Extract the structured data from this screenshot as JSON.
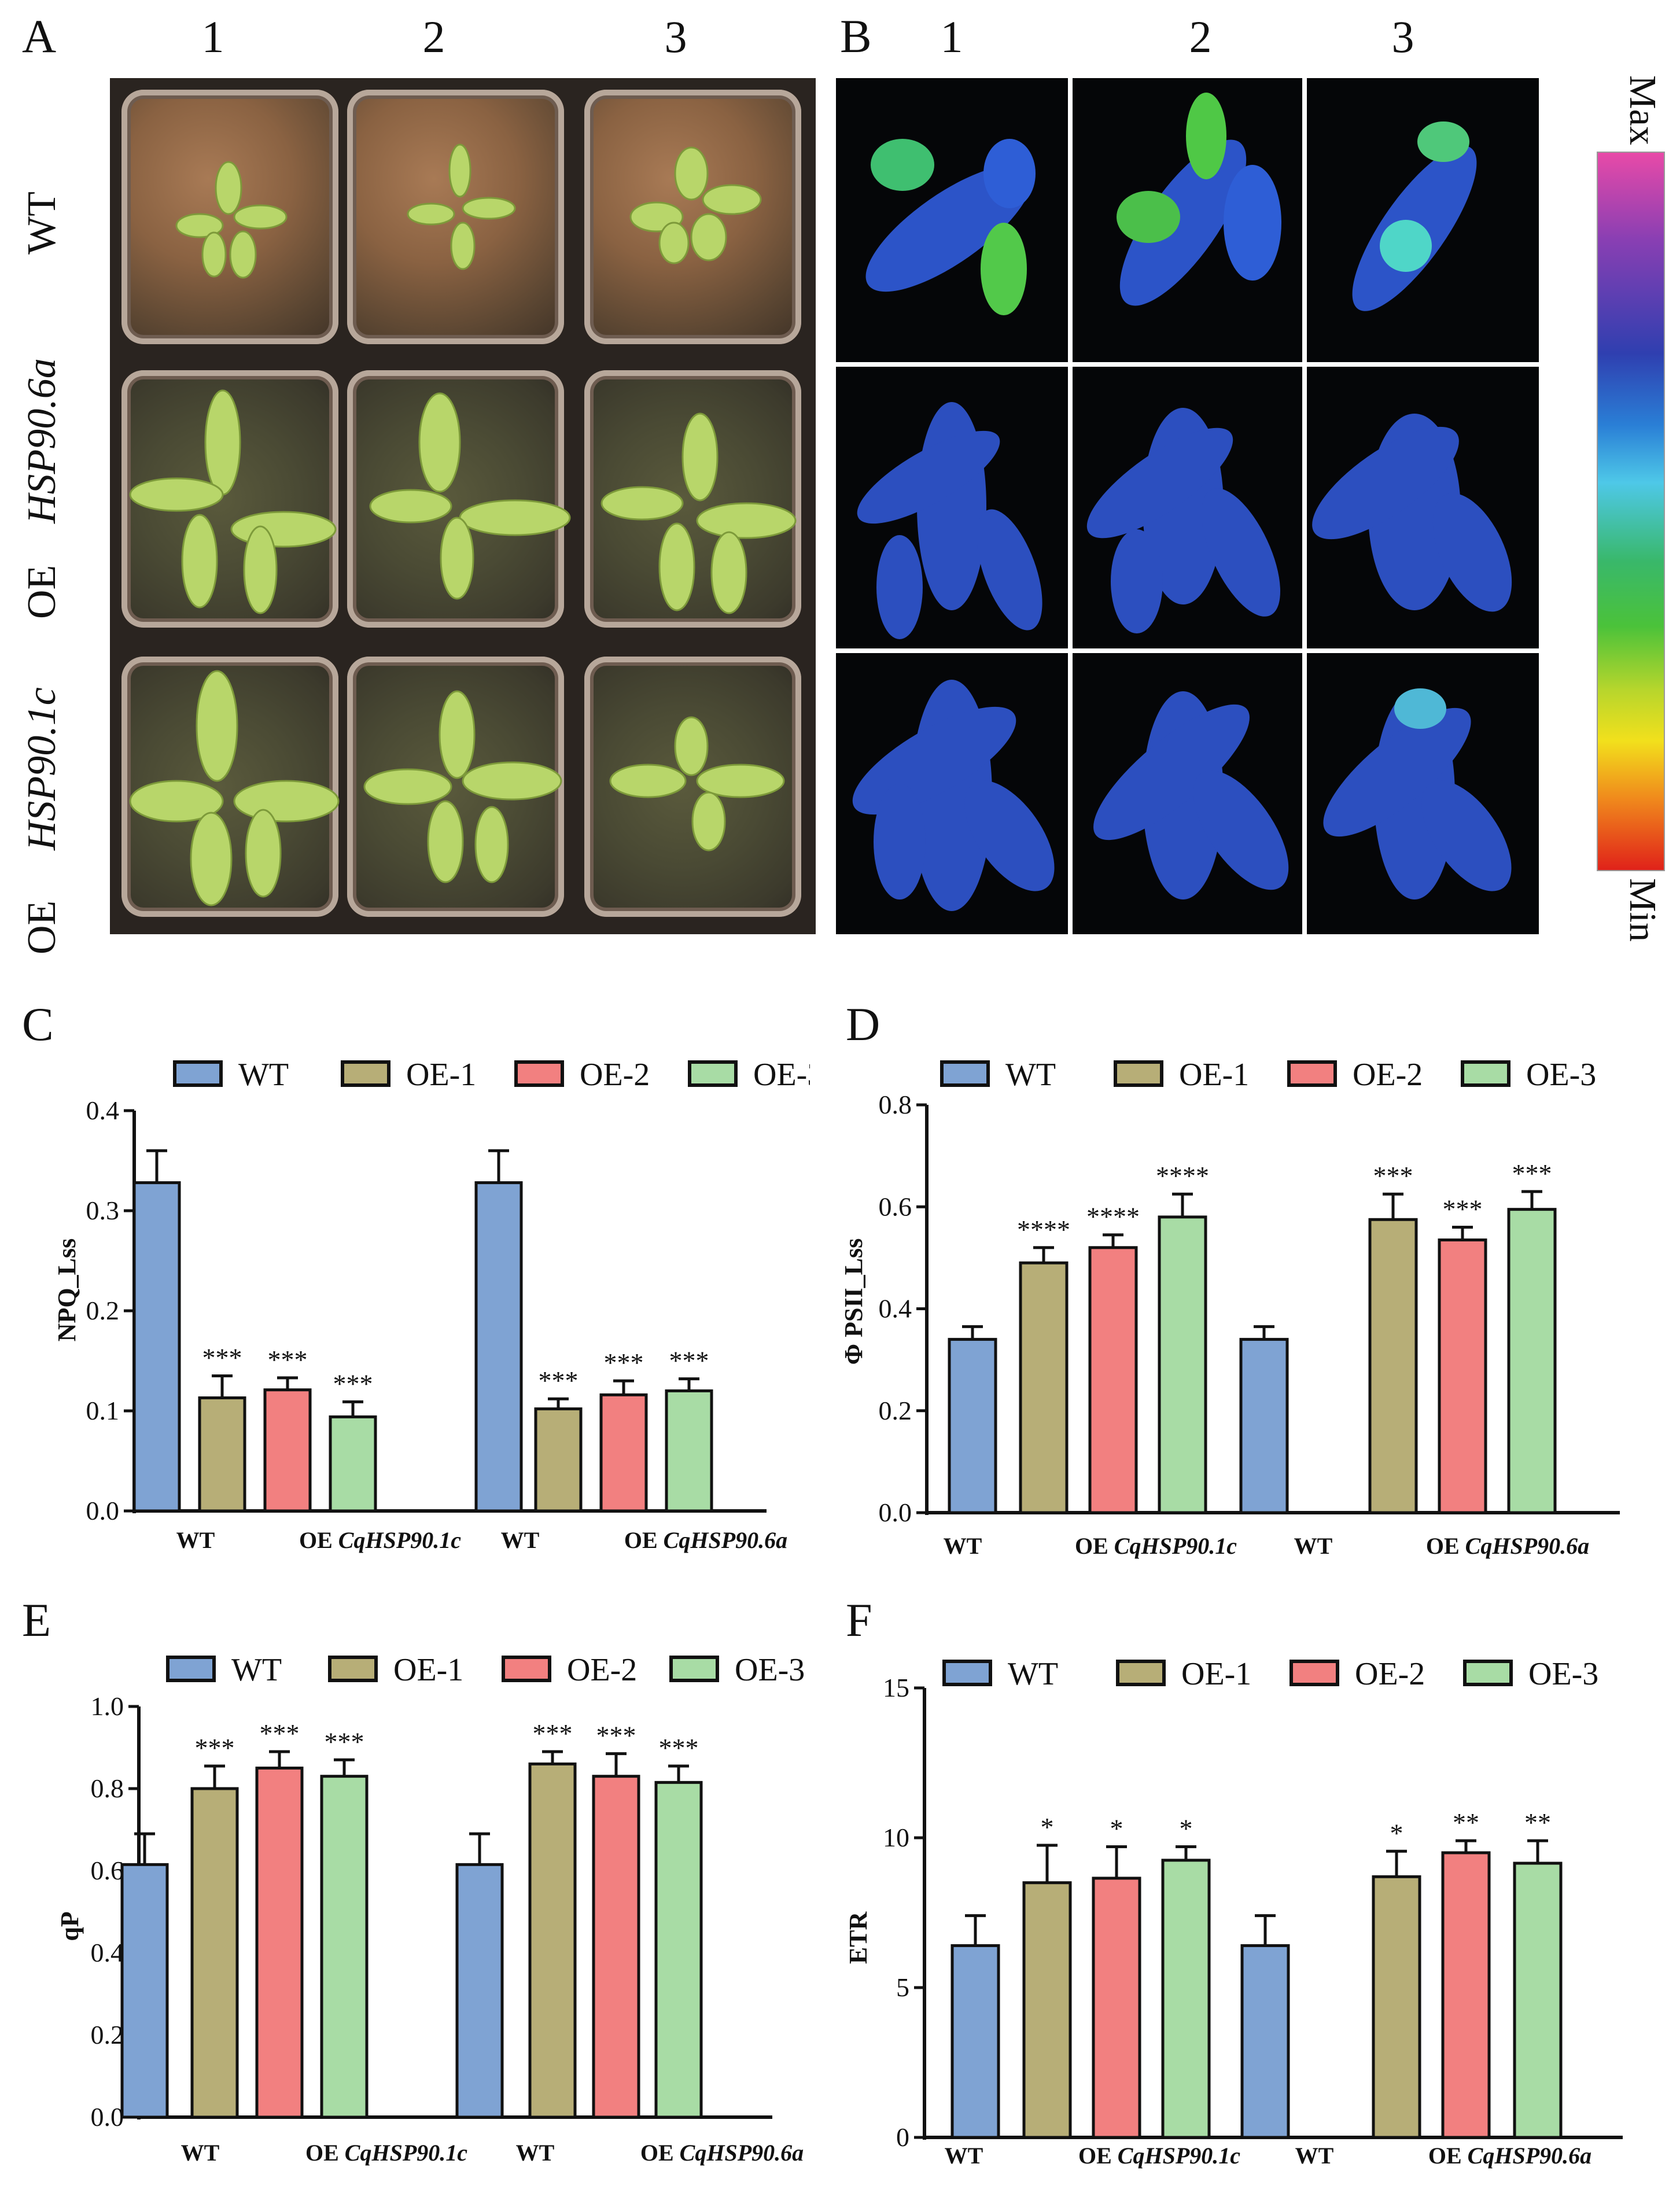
{
  "panel_labels": {
    "A": "A",
    "B": "B",
    "C": "C",
    "D": "D",
    "E": "E",
    "F": "F"
  },
  "column_labels": [
    "1",
    "2",
    "3"
  ],
  "row_labels": [
    {
      "line1": "WT"
    },
    {
      "line1": "OE",
      "line2": "HSP90.6a"
    },
    {
      "line1": "OE",
      "line2": "HSP90.1c"
    }
  ],
  "colorbar": {
    "max_label": "Max",
    "min_label": "Min"
  },
  "colors": {
    "WT": "#7fa3d3",
    "OE-1": "#b7ae77",
    "OE-2": "#f28080",
    "OE-3": "#a8dca5"
  },
  "legend": [
    "WT",
    "OE-1",
    "OE-2",
    "OE-3"
  ],
  "chart_data": [
    {
      "id": "C",
      "type": "bar",
      "ylabel": "NPQ_Lss",
      "ylim": [
        0,
        0.4
      ],
      "yticks": [
        "0.0",
        "0.1",
        "0.2",
        "0.3",
        "0.4"
      ],
      "group_labels": [
        {
          "wt": "WT",
          "oe": "OE",
          "gene": "CqHSP90.1c"
        },
        {
          "wt": "WT",
          "oe": "OE",
          "gene": "CqHSP90.6a"
        }
      ],
      "groups": [
        {
          "values": [
            0.328,
            0.113,
            0.121,
            0.094
          ],
          "errors": [
            0.032,
            0.022,
            0.012,
            0.015
          ],
          "sig": [
            "",
            "***",
            "***",
            "***"
          ]
        },
        {
          "values": [
            0.328,
            0.102,
            0.116,
            0.12
          ],
          "errors": [
            0.032,
            0.01,
            0.014,
            0.012
          ],
          "sig": [
            "",
            "***",
            "***",
            "***"
          ]
        }
      ]
    },
    {
      "id": "D",
      "type": "bar",
      "ylabel": "Φ PSII_Lss",
      "ylim": [
        0,
        0.8
      ],
      "yticks": [
        "0.0",
        "0.2",
        "0.4",
        "0.6",
        "0.8"
      ],
      "group_labels": [
        {
          "wt": "WT",
          "oe": "OE",
          "gene": "CqHSP90.1c"
        },
        {
          "wt": "WT",
          "oe": "OE",
          "gene": "CqHSP90.6a"
        }
      ],
      "groups": [
        {
          "values": [
            0.34,
            0.49,
            0.52,
            0.58
          ],
          "errors": [
            0.025,
            0.03,
            0.025,
            0.045
          ],
          "sig": [
            "",
            "****",
            "****",
            "****"
          ]
        },
        {
          "values": [
            0.34,
            0.575,
            0.535,
            0.595
          ],
          "errors": [
            0.025,
            0.05,
            0.025,
            0.035
          ],
          "sig": [
            "",
            "***",
            "***",
            "***"
          ]
        }
      ]
    },
    {
      "id": "E",
      "type": "bar",
      "ylabel": "qP",
      "ylim": [
        0,
        1.0
      ],
      "yticks": [
        "0.0",
        "0.2",
        "0.4",
        "0.6",
        "0.8",
        "1.0"
      ],
      "group_labels": [
        {
          "wt": "WT",
          "oe": "OE",
          "gene": "CqHSP90.1c"
        },
        {
          "wt": "WT",
          "oe": "OE",
          "gene": "CqHSP90.6a"
        }
      ],
      "groups": [
        {
          "values": [
            0.615,
            0.8,
            0.85,
            0.83
          ],
          "errors": [
            0.075,
            0.055,
            0.04,
            0.04
          ],
          "sig": [
            "",
            "***",
            "***",
            "***"
          ]
        },
        {
          "values": [
            0.615,
            0.86,
            0.83,
            0.815
          ],
          "errors": [
            0.075,
            0.03,
            0.055,
            0.04
          ],
          "sig": [
            "",
            "***",
            "***",
            "***"
          ]
        }
      ]
    },
    {
      "id": "F",
      "type": "bar",
      "ylabel": "ETR",
      "ylim": [
        0,
        15
      ],
      "yticks": [
        "0",
        "5",
        "10",
        "15"
      ],
      "group_labels": [
        {
          "wt": "WT",
          "oe": "OE",
          "gene": "CqHSP90.1c"
        },
        {
          "wt": "WT",
          "oe": "OE",
          "gene": "CqHSP90.6a"
        }
      ],
      "groups": [
        {
          "values": [
            6.4,
            8.5,
            8.65,
            9.25
          ],
          "errors": [
            1.0,
            1.25,
            1.05,
            0.45
          ],
          "sig": [
            "",
            "*",
            "*",
            "*"
          ]
        },
        {
          "values": [
            6.4,
            8.7,
            9.5,
            9.15
          ],
          "errors": [
            1.0,
            0.85,
            0.4,
            0.75
          ],
          "sig": [
            "",
            "*",
            "**",
            "**"
          ]
        }
      ]
    }
  ]
}
